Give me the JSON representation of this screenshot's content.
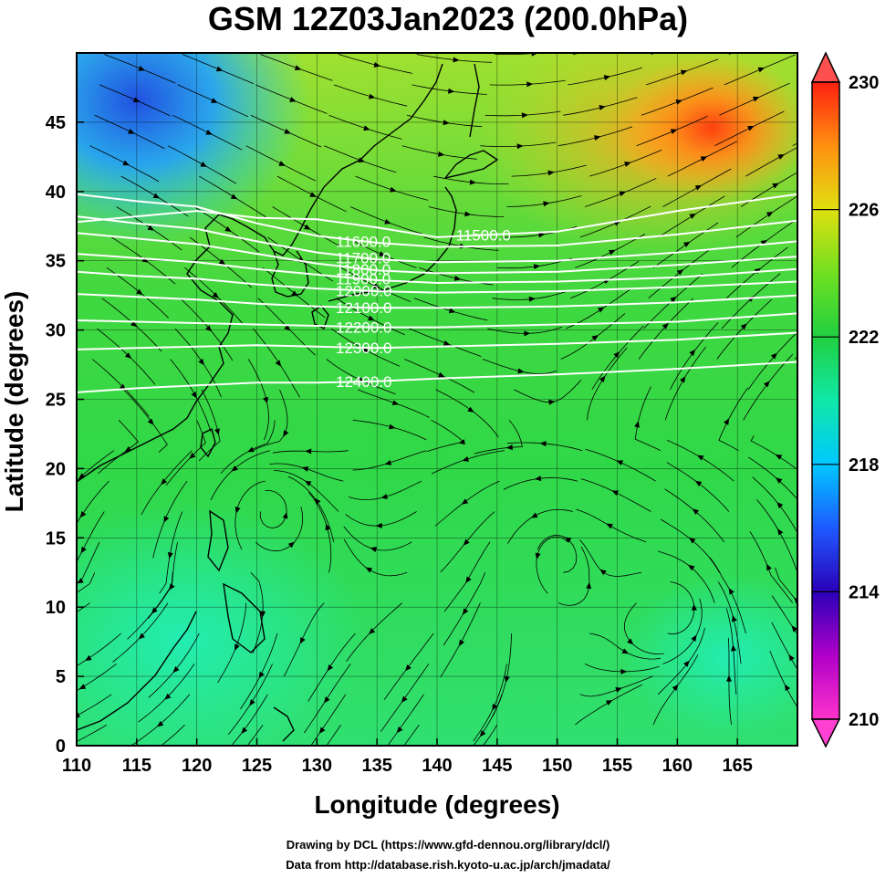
{
  "title": "GSM 12Z03Jan2023 (200.0hPa)",
  "x_axis": {
    "label": "Longitude (degrees)",
    "range": [
      110,
      170
    ],
    "ticks": [
      "110",
      "115",
      "120",
      "125",
      "130",
      "135",
      "140",
      "145",
      "150",
      "155",
      "160",
      "165"
    ]
  },
  "y_axis": {
    "label": "Latitude  (degrees)",
    "range": [
      0,
      50
    ],
    "ticks": [
      "0",
      "5",
      "10",
      "15",
      "20",
      "25",
      "30",
      "35",
      "40",
      "45"
    ]
  },
  "colorbar": {
    "min": 210,
    "max": 230,
    "labels": [
      "230",
      "226",
      "222",
      "218",
      "214",
      "210"
    ]
  },
  "contours": [
    {
      "label": "11500.0",
      "lat": [
        37.8,
        38.2,
        38.6,
        38.1,
        38.0,
        37.4,
        36.7,
        37.1,
        38.6,
        39.8
      ]
    },
    {
      "label": "11600.0",
      "lat": [
        39.8,
        39.3,
        38.9,
        37.7,
        36.8,
        36.3,
        36.0,
        36.1,
        36.9,
        37.9
      ]
    },
    {
      "label": "11700.0",
      "lat": [
        38.2,
        37.7,
        37.3,
        36.4,
        35.6,
        35.1,
        34.9,
        35.0,
        35.6,
        36.4
      ]
    },
    {
      "label": "11800.0",
      "lat": [
        37.0,
        36.6,
        36.2,
        35.5,
        34.8,
        34.3,
        34.1,
        34.2,
        34.7,
        35.3
      ]
    },
    {
      "label": "11900.0",
      "lat": [
        35.5,
        35.2,
        34.9,
        34.4,
        34.0,
        33.6,
        33.4,
        33.5,
        33.8,
        34.4
      ]
    },
    {
      "label": "12000.0",
      "lat": [
        34.2,
        33.9,
        33.7,
        33.3,
        33.0,
        32.8,
        32.7,
        32.8,
        33.1,
        33.5
      ]
    },
    {
      "label": "12100.0",
      "lat": [
        32.6,
        32.4,
        32.2,
        31.9,
        31.7,
        31.6,
        31.6,
        31.7,
        32.0,
        32.5
      ]
    },
    {
      "label": "12200.0",
      "lat": [
        30.7,
        30.6,
        30.5,
        30.4,
        30.3,
        30.2,
        30.2,
        30.4,
        30.6,
        31.2
      ]
    },
    {
      "label": "12300.0",
      "lat": [
        28.6,
        28.7,
        28.8,
        28.9,
        28.8,
        28.7,
        28.8,
        29.0,
        29.3,
        29.8
      ]
    },
    {
      "label": "12400.0",
      "lat": [
        25.5,
        25.8,
        26.0,
        26.2,
        26.2,
        26.3,
        26.5,
        26.8,
        27.2,
        27.7
      ]
    }
  ],
  "contour_lons": [
    110,
    115,
    120,
    125,
    130,
    135,
    140,
    150,
    160,
    170
  ],
  "credits": {
    "line1": "Drawing by DCL (https://www.gfd-dennou.org/library/dcl/)",
    "line2": "Data from http://database.rish.kyoto-u.ac.jp/arch/jmadata/"
  }
}
